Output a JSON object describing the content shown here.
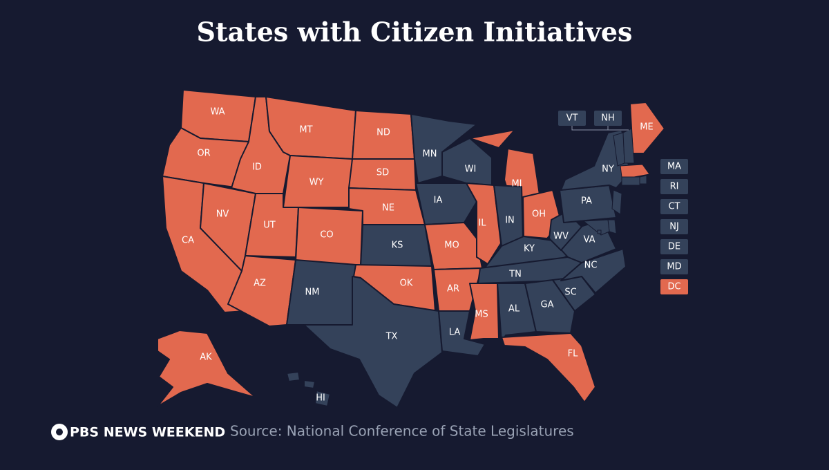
{
  "title": "States with Citizen Initiatives",
  "source": "Source: National Conference of State Legislatures",
  "logo": "PBS NEWS WEEKEND",
  "colors": {
    "initiative": "#e2694f",
    "none": "#34425a"
  },
  "states": [
    {
      "label": "WA",
      "initiative": true
    },
    {
      "label": "OR",
      "initiative": true
    },
    {
      "label": "CA",
      "initiative": true
    },
    {
      "label": "NV",
      "initiative": true
    },
    {
      "label": "ID",
      "initiative": true
    },
    {
      "label": "MT",
      "initiative": true
    },
    {
      "label": "WY",
      "initiative": true
    },
    {
      "label": "UT",
      "initiative": true
    },
    {
      "label": "CO",
      "initiative": true
    },
    {
      "label": "AZ",
      "initiative": true
    },
    {
      "label": "NM",
      "initiative": false
    },
    {
      "label": "ND",
      "initiative": true
    },
    {
      "label": "SD",
      "initiative": true
    },
    {
      "label": "NE",
      "initiative": true
    },
    {
      "label": "KS",
      "initiative": false
    },
    {
      "label": "OK",
      "initiative": true
    },
    {
      "label": "TX",
      "initiative": false
    },
    {
      "label": "MN",
      "initiative": false
    },
    {
      "label": "IA",
      "initiative": false
    },
    {
      "label": "MO",
      "initiative": true
    },
    {
      "label": "AR",
      "initiative": true
    },
    {
      "label": "LA",
      "initiative": false
    },
    {
      "label": "WI",
      "initiative": false
    },
    {
      "label": "IL",
      "initiative": true
    },
    {
      "label": "MI",
      "initiative": true
    },
    {
      "label": "IN",
      "initiative": false
    },
    {
      "label": "OH",
      "initiative": true
    },
    {
      "label": "KY",
      "initiative": false
    },
    {
      "label": "TN",
      "initiative": false
    },
    {
      "label": "MS",
      "initiative": true
    },
    {
      "label": "AL",
      "initiative": false
    },
    {
      "label": "GA",
      "initiative": false
    },
    {
      "label": "FL",
      "initiative": true
    },
    {
      "label": "SC",
      "initiative": false
    },
    {
      "label": "NC",
      "initiative": false
    },
    {
      "label": "VA",
      "initiative": false
    },
    {
      "label": "WV",
      "initiative": false
    },
    {
      "label": "PA",
      "initiative": false
    },
    {
      "label": "NY",
      "initiative": false
    },
    {
      "label": "ME",
      "initiative": true
    },
    {
      "label": "AK",
      "initiative": true
    },
    {
      "label": "HI",
      "initiative": false
    }
  ],
  "callouts": [
    {
      "label": "VT",
      "initiative": false
    },
    {
      "label": "NH",
      "initiative": false
    },
    {
      "label": "MA",
      "initiative": false
    },
    {
      "label": "RI",
      "initiative": false
    },
    {
      "label": "CT",
      "initiative": false
    },
    {
      "label": "NJ",
      "initiative": false
    },
    {
      "label": "DE",
      "initiative": false
    },
    {
      "label": "MD",
      "initiative": false
    },
    {
      "label": "DC",
      "initiative": true
    }
  ]
}
